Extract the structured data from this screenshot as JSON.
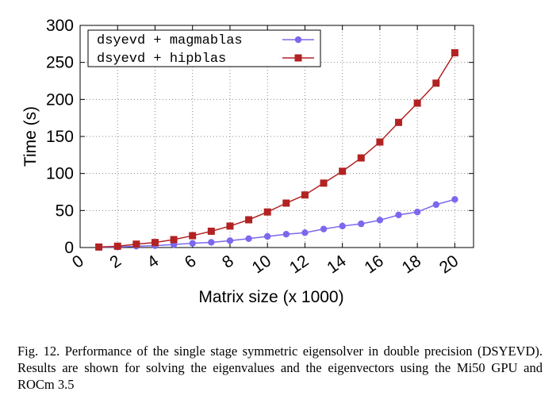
{
  "chart_data": {
    "type": "line",
    "xlabel": "Matrix size (x 1000)",
    "ylabel": "Time (s)",
    "xlim": [
      0,
      21
    ],
    "ylim": [
      0,
      300
    ],
    "xticks": [
      0,
      2,
      4,
      6,
      8,
      10,
      12,
      14,
      16,
      18,
      20
    ],
    "yticks": [
      0,
      50,
      100,
      150,
      200,
      250,
      300
    ],
    "grid": true,
    "legend_position": "top-left",
    "x": [
      1,
      2,
      3,
      4,
      5,
      6,
      7,
      8,
      9,
      10,
      11,
      12,
      13,
      14,
      15,
      16,
      17,
      18,
      19,
      20
    ],
    "series": [
      {
        "name": "dsyevd + magmablas",
        "color": "#7b68ee",
        "marker": "circle",
        "values": [
          0.3,
          0.7,
          1.8,
          2.5,
          4,
          5.7,
          7,
          9.3,
          12,
          15,
          18,
          20,
          25,
          29,
          32,
          37,
          44,
          48,
          58,
          65
        ]
      },
      {
        "name": "dsyevd + hipblas",
        "color": "#b22222",
        "marker": "square",
        "values": [
          0.7,
          1.8,
          4.6,
          6.8,
          10.7,
          16,
          22,
          29,
          37.5,
          48,
          60,
          71,
          87,
          103,
          121,
          142.5,
          169,
          195,
          222,
          263
        ]
      }
    ]
  },
  "caption": "Fig. 12.  Performance of the single stage symmetric eigensolver in double precision (DSYEVD). Results are shown for solving the eigenvalues and the eigenvectors using the Mi50 GPU and ROCm 3.5"
}
